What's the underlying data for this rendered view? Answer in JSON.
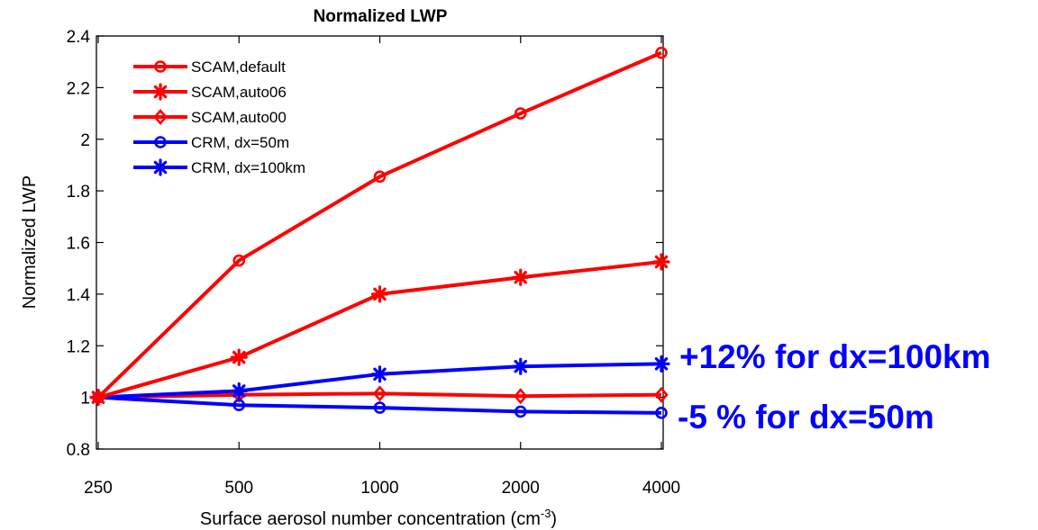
{
  "chart_data": {
    "type": "line",
    "title": "Normalized LWP",
    "xlabel": "Surface aerosol number concentration (cm",
    "xlabel_sup": "-3",
    "xlabel_suffix": ")",
    "ylabel": "Normalized LWP",
    "x_scale": "log2",
    "x": [
      250,
      500,
      1000,
      2000,
      4000
    ],
    "x_ticks": [
      "250",
      "500",
      "1000",
      "2000",
      "4000"
    ],
    "ylim": [
      0.8,
      2.4
    ],
    "y_ticks": [
      "0.8",
      "1",
      "1.2",
      "1.4",
      "1.6",
      "1.8",
      "2",
      "2.2",
      "2.4"
    ],
    "grid": false,
    "legend_position": "top-left",
    "series": [
      {
        "name": "SCAM,default",
        "color": "#ff0000",
        "marker": "circle",
        "values": [
          1.0,
          1.53,
          1.855,
          2.1,
          2.335
        ]
      },
      {
        "name": "SCAM,auto06",
        "color": "#ff0000",
        "marker": "asterisk",
        "values": [
          1.0,
          1.155,
          1.4,
          1.465,
          1.525
        ]
      },
      {
        "name": "SCAM,auto00",
        "color": "#ff0000",
        "marker": "diamond",
        "values": [
          1.0,
          1.01,
          1.015,
          1.005,
          1.01
        ]
      },
      {
        "name": "CRM, dx=50m",
        "color": "#0000ff",
        "marker": "circle",
        "values": [
          1.0,
          0.97,
          0.96,
          0.945,
          0.94
        ]
      },
      {
        "name": "CRM, dx=100km",
        "color": "#0000ff",
        "marker": "asterisk",
        "values": [
          1.0,
          1.025,
          1.09,
          1.12,
          1.13
        ]
      }
    ],
    "annotations": [
      {
        "text": "+12% for dx=100km",
        "color": "#0000ff"
      },
      {
        "text": "-5 % for dx=50m",
        "color": "#0000ff"
      }
    ]
  }
}
